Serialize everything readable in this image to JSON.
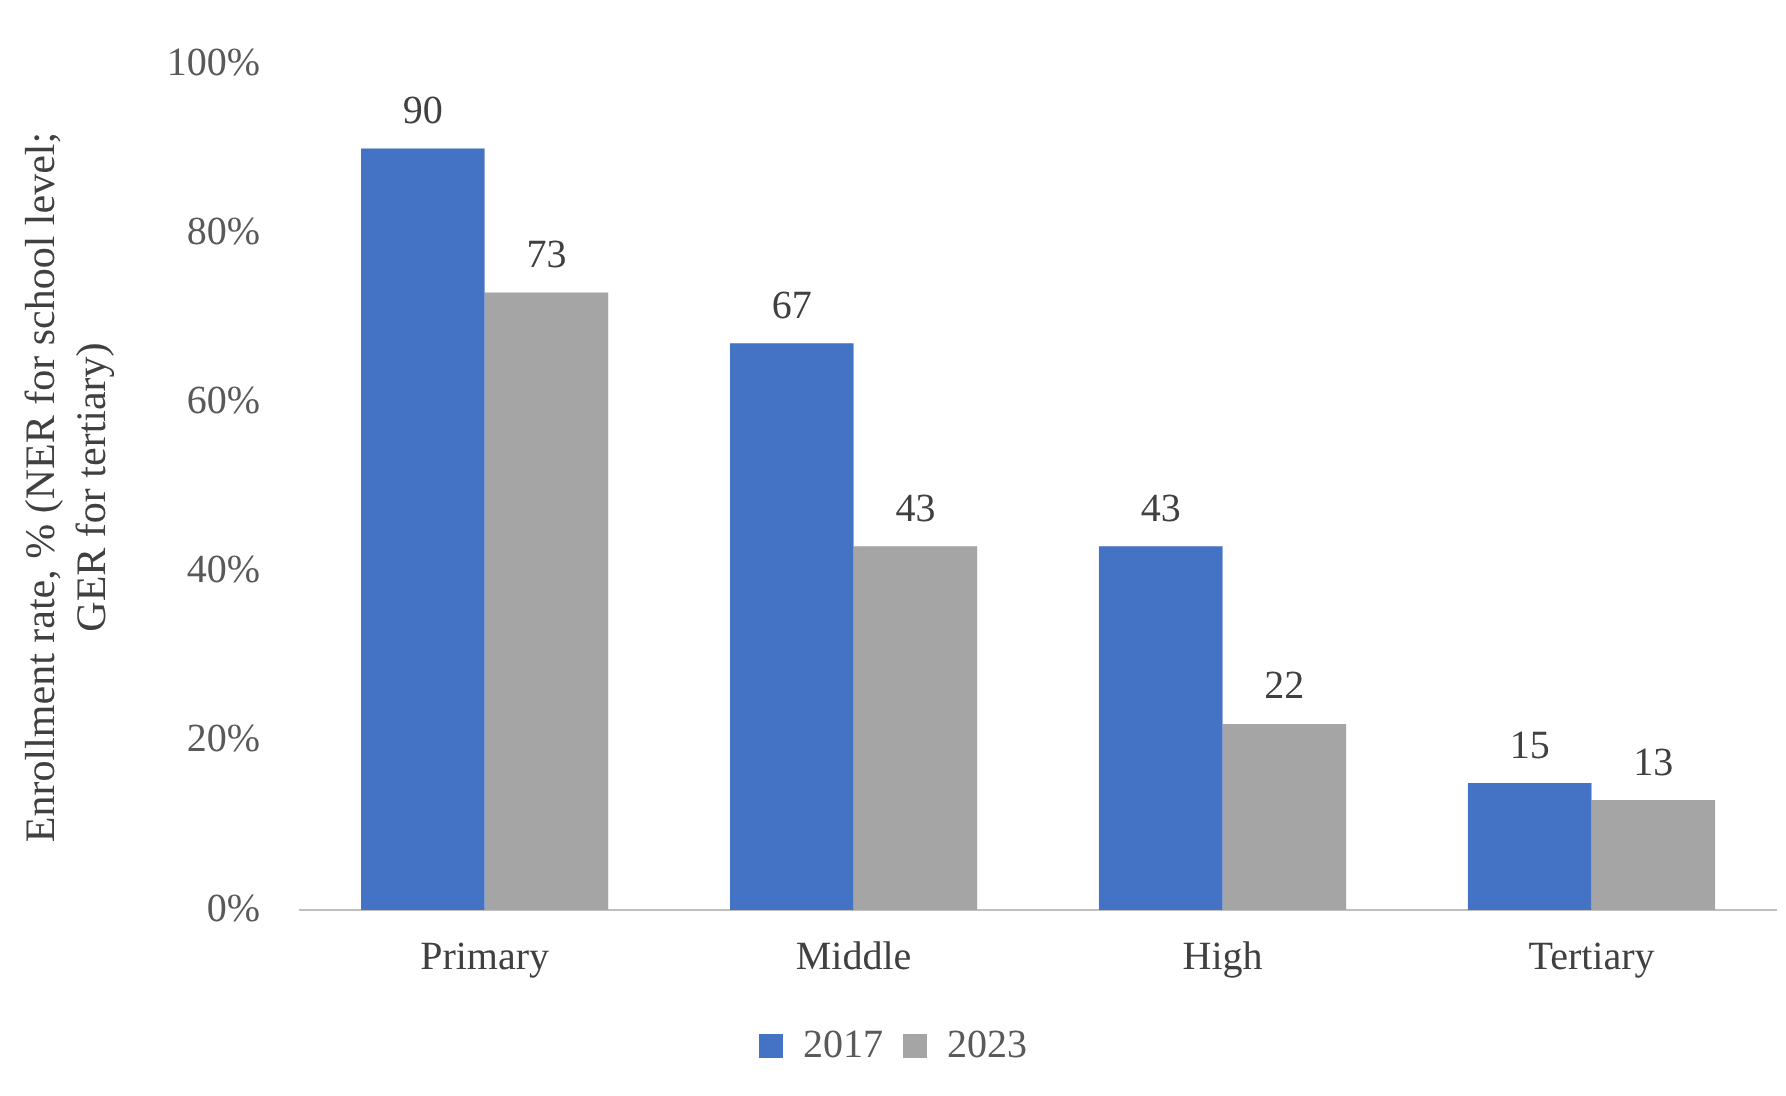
{
  "chart_data": {
    "type": "bar",
    "ylabel": "Enrollment rate, % (NER for school level; GER for tertiary)",
    "categories": [
      "Primary",
      "Middle",
      "High",
      "Tertiary"
    ],
    "series": [
      {
        "name": "2017",
        "color": "#4472c4",
        "values": [
          90,
          67,
          43,
          15
        ]
      },
      {
        "name": "2023",
        "color": "#a5a5a5",
        "values": [
          73,
          43,
          22,
          13
        ]
      }
    ],
    "ylim": [
      0,
      100
    ],
    "yticks": [
      {
        "value": 0,
        "label": "0%"
      },
      {
        "value": 20,
        "label": "20%"
      },
      {
        "value": 40,
        "label": "40%"
      },
      {
        "value": 60,
        "label": "60%"
      },
      {
        "value": 80,
        "label": "80%"
      },
      {
        "value": 100,
        "label": "100%"
      }
    ],
    "grid": false,
    "legend": "bottom",
    "data_labels": true
  }
}
